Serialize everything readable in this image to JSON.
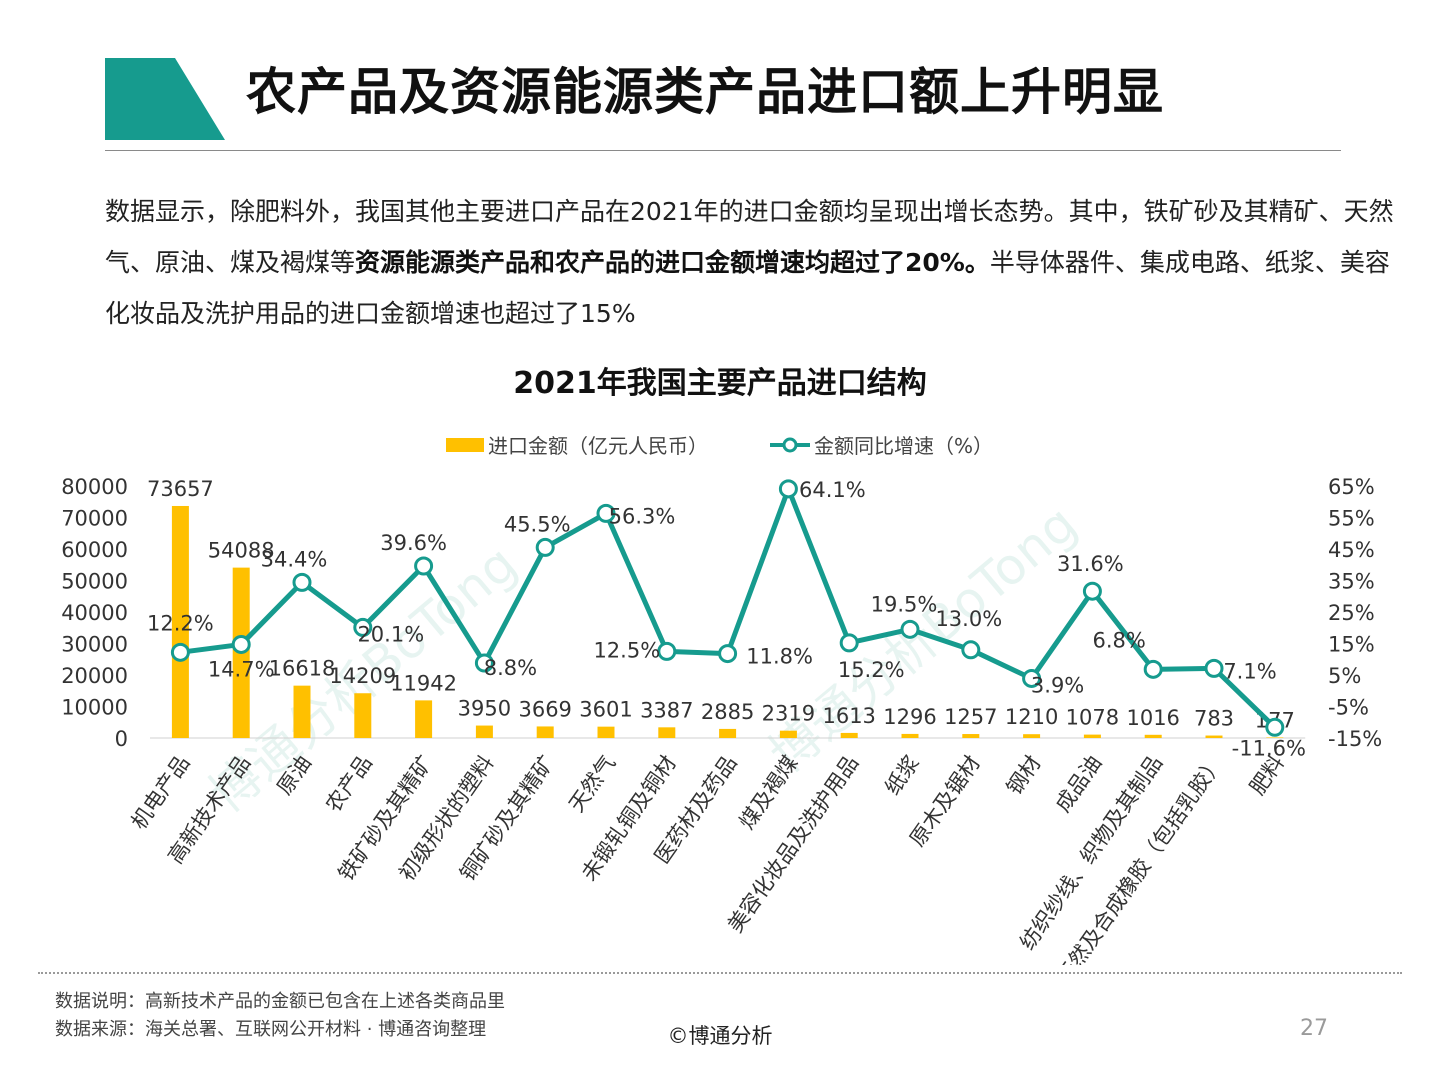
{
  "slide": {
    "title": "农产品及资源能源类产品进口额上升明显",
    "intro_part1": "数据显示，除肥料外，我国其他主要进口产品在2021年的进口金额均呈现出增长态势。其中，铁矿砂及其精矿、天然气、原油、煤及褐煤等",
    "intro_bold": "资源能源类产品和农产品的进口金额增速均超过了20%。",
    "intro_part2": "半导体器件、集成电路、纸浆、美容化妆品及洗护用品的进口金额增速也超过了15%",
    "footnote_note": "数据说明：高新技术产品的金额已包含在上述各类商品里",
    "footnote_source": "数据来源：海关总署、互联网公开材料 · 博通咨询整理",
    "copyright": "©博通分析",
    "page_number": "27",
    "watermark_left": "博通分析BoTong",
    "watermark_right": "博通分析BoTong",
    "colors": {
      "accent": "#169b8e",
      "bar": "#ffc000",
      "line": "#169b8e"
    }
  },
  "chart_data": {
    "type": "bar+line",
    "title": "2021年我国主要产品进口结构",
    "legend": [
      "进口金额（亿元人民币）",
      "金额同比增速（%）"
    ],
    "legend_position": "top",
    "categories": [
      "机电产品",
      "高新技术产品",
      "原油",
      "农产品",
      "铁矿砂及其精矿",
      "初级形状的塑料",
      "铜矿砂及其精矿",
      "天然气",
      "未锻轧铜及铜材",
      "医药材及药品",
      "煤及褐煤",
      "美容化妆品及洗护用品",
      "纸浆",
      "原木及锯材",
      "钢材",
      "成品油",
      "纺织纱线、织物及其制品",
      "天然及合成橡胶（包括乳胶）",
      "肥料"
    ],
    "series": [
      {
        "name": "进口金额（亿元人民币）",
        "type": "bar",
        "axis": "left",
        "values": [
          73657,
          54088,
          16618,
          14209,
          11942,
          3950,
          3669,
          3601,
          3387,
          2885,
          2319,
          1613,
          1296,
          1257,
          1210,
          1078,
          1016,
          783,
          177
        ],
        "labels": [
          "73657",
          "54088",
          "16618",
          "14209",
          "11942",
          "3950",
          "3669",
          "3601",
          "3387",
          "2885",
          "2319",
          "1613",
          "1296",
          "1257",
          "1210",
          "1078",
          "1016",
          "783",
          "177"
        ]
      },
      {
        "name": "金额同比增速（%）",
        "type": "line",
        "axis": "right",
        "values": [
          12.2,
          14.7,
          34.4,
          20.1,
          39.6,
          8.8,
          45.5,
          56.3,
          12.5,
          11.8,
          64.1,
          15.2,
          19.5,
          13.0,
          3.9,
          31.6,
          6.8,
          7.1,
          -11.6
        ],
        "labels": [
          "12.2%",
          "14.7%",
          "34.4%",
          "20.1%",
          "39.6%",
          "8.8%",
          "45.5%",
          "56.3%",
          "12.5%",
          "11.8%",
          "64.1%",
          "15.2%",
          "19.5%",
          "13.0%",
          "3.9%",
          "31.6%",
          "6.8%",
          "7.1%",
          "-11.6%"
        ]
      }
    ],
    "y_left": {
      "min": 0,
      "max": 80000,
      "ticks": [
        "80000",
        "70000",
        "60000",
        "50000",
        "40000",
        "30000",
        "20000",
        "10000",
        "0"
      ]
    },
    "y_right": {
      "min": -15,
      "max": 65,
      "ticks": [
        "65%",
        "55%",
        "45%",
        "35%",
        "25%",
        "15%",
        "5%",
        "-5%",
        "-15%"
      ]
    },
    "grid": false
  }
}
